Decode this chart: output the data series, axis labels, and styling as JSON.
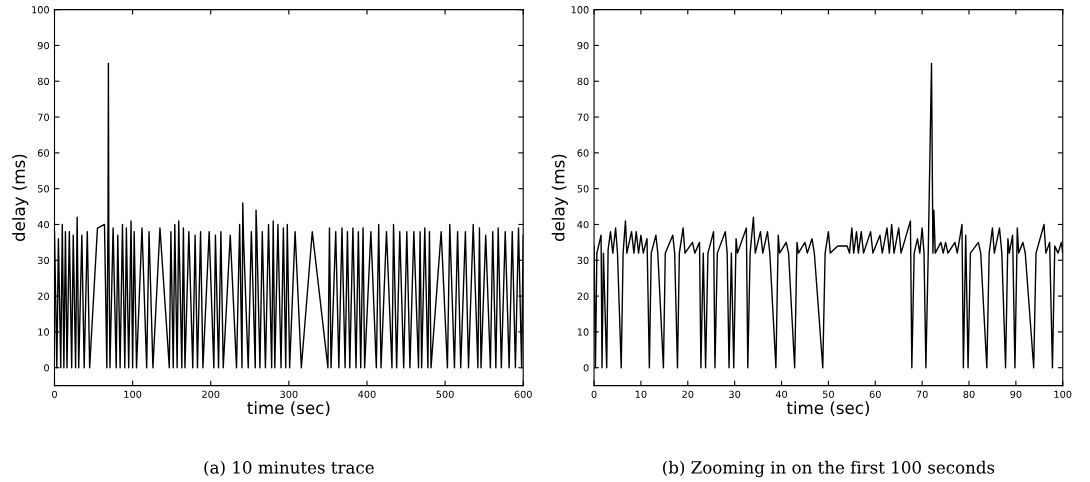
{
  "chart_data": [
    {
      "type": "line",
      "xlabel": "time (sec)",
      "ylabel": "delay (ms)",
      "xlim": [
        0,
        600
      ],
      "ylim": [
        -5,
        100
      ],
      "xticks": [
        0,
        100,
        200,
        300,
        400,
        500,
        600
      ],
      "yticks": [
        0,
        10,
        20,
        30,
        40,
        50,
        60,
        70,
        80,
        90,
        100
      ],
      "grid": false,
      "legend": false,
      "annotations": [
        "(a) 10 minutes trace"
      ],
      "series": [
        {
          "color": "#000000",
          "x": [
            0,
            3,
            5,
            8,
            10,
            12,
            14,
            16,
            19,
            22,
            24,
            27,
            29,
            31,
            35,
            38,
            42,
            45,
            55,
            64,
            67,
            68.5,
            69,
            69.5,
            71,
            75,
            79,
            81,
            84,
            87,
            90,
            92,
            95,
            98,
            100,
            102,
            105,
            112,
            118,
            121,
            126,
            135,
            147,
            149,
            152,
            154,
            157,
            159,
            163,
            165,
            167,
            172,
            177,
            180,
            183,
            187,
            190,
            198,
            204,
            206,
            210,
            213,
            216,
            225,
            233,
            237,
            240,
            241,
            242,
            248,
            252,
            257,
            258,
            259,
            263,
            266,
            270,
            274,
            278,
            280,
            282,
            286,
            290,
            293,
            296,
            298,
            301,
            308,
            316,
            330,
            350,
            352,
            354,
            360,
            364,
            368,
            372,
            375,
            378,
            382,
            386,
            389,
            392,
            395,
            397,
            405,
            412,
            415,
            418,
            425,
            432,
            434,
            438,
            442,
            447,
            451,
            455,
            460,
            466,
            468,
            470,
            474,
            478,
            480,
            482,
            495,
            503,
            506,
            512,
            516,
            520,
            526,
            530,
            536,
            542,
            544,
            546,
            552,
            558,
            561,
            565,
            568,
            572,
            577,
            582,
            586,
            590,
            594,
            598,
            600
          ],
          "values": [
            38,
            0,
            36,
            0,
            40,
            0,
            38,
            0,
            38,
            0,
            37,
            0,
            42,
            0,
            37,
            0,
            38,
            0,
            39,
            40,
            0,
            42,
            85,
            38,
            0,
            39,
            0,
            37,
            0,
            40,
            0,
            39,
            0,
            41,
            0,
            38,
            0,
            39,
            0,
            38,
            0,
            39,
            0,
            38,
            0,
            40,
            0,
            41,
            0,
            39,
            0,
            38,
            0,
            37,
            0,
            38,
            0,
            38,
            0,
            37,
            0,
            38,
            0,
            37,
            0,
            40,
            0,
            46,
            36,
            0,
            38,
            0,
            44,
            37,
            0,
            38,
            0,
            40,
            0,
            41,
            0,
            40,
            0,
            39,
            0,
            40,
            0,
            38,
            0,
            38,
            0,
            39,
            0,
            38,
            0,
            39,
            0,
            38,
            0,
            39,
            0,
            38,
            0,
            39,
            0,
            38,
            0,
            40,
            0,
            38,
            0,
            40,
            0,
            38,
            0,
            38,
            0,
            38,
            0,
            38,
            0,
            39,
            0,
            38,
            0,
            38,
            0,
            40,
            0,
            38,
            0,
            38,
            0,
            40,
            0,
            39,
            0,
            37,
            0,
            38,
            0,
            39,
            0,
            38,
            0,
            38,
            0,
            39,
            0,
            37
          ]
        }
      ]
    },
    {
      "type": "line",
      "xlabel": "time (sec)",
      "ylabel": "delay (ms)",
      "xlim": [
        0,
        100
      ],
      "ylim": [
        -5,
        100
      ],
      "xticks": [
        0,
        10,
        20,
        30,
        40,
        50,
        60,
        70,
        80,
        90,
        100
      ],
      "yticks": [
        0,
        10,
        20,
        30,
        40,
        50,
        60,
        70,
        80,
        90,
        100
      ],
      "grid": false,
      "legend": false,
      "annotations": [
        "(b) Zooming in on the first 100 seconds"
      ],
      "series": [
        {
          "color": "#000000",
          "x": [
            0,
            0.3,
            0.6,
            1.5,
            1.7,
            2.0,
            2.7,
            3.0,
            3.5,
            4,
            4.6,
            5,
            5.8,
            6.2,
            6.7,
            7,
            8,
            8.5,
            9,
            9.5,
            10,
            10.5,
            11.3,
            11.8,
            12.2,
            13.2,
            13.6,
            14.8,
            15.2,
            16.8,
            17.2,
            17.8,
            18.2,
            19,
            19.4,
            21,
            21.5,
            22.5,
            22.8,
            23.3,
            23.8,
            24.3,
            25.5,
            25.8,
            26.3,
            28,
            28.4,
            28.8,
            29.3,
            29.8,
            30.3,
            30.6,
            32.5,
            32.8,
            33.3,
            34,
            34.4,
            35.5,
            36,
            37,
            37.5,
            38.8,
            39.3,
            39.6,
            41,
            41.5,
            42.8,
            43.3,
            43.6,
            45,
            45.5,
            46.5,
            47,
            48.8,
            49.3,
            50,
            50.4,
            52,
            54,
            54.5,
            55,
            55.4,
            56,
            56.4,
            57,
            57.5,
            59,
            59.5,
            61,
            61.5,
            62.5,
            63,
            63.5,
            64,
            65,
            65.5,
            67.5,
            67.8,
            68.3,
            69,
            69.5,
            70,
            70.4,
            70.8,
            71.3,
            72,
            72.3,
            72.5,
            72.8,
            74,
            74.5,
            75,
            75.5,
            77,
            77.5,
            78.5,
            78.8,
            79.3,
            79.8,
            80.3,
            82,
            82.5,
            83.8,
            84.3,
            85,
            85.4,
            86.5,
            87,
            87.8,
            88.3,
            88.6,
            89.3,
            89.8,
            90.3,
            90.6,
            91.5,
            92,
            93.8,
            94.3,
            96,
            96.4,
            97.2,
            97.8,
            98.3,
            99,
            99.7,
            100
          ],
          "values": [
            34,
            0,
            32,
            37,
            0,
            32,
            0,
            33,
            38,
            32,
            39,
            32,
            0,
            32,
            41,
            32,
            38,
            32,
            38,
            32,
            37,
            32,
            36,
            0,
            32,
            37,
            32,
            0,
            32,
            37,
            32,
            0,
            32,
            39,
            32,
            35,
            32,
            35,
            0,
            32,
            0,
            32,
            38,
            0,
            32,
            38,
            32,
            0,
            32,
            0,
            36,
            32,
            39,
            0,
            32,
            42,
            32,
            38,
            32,
            38,
            32,
            0,
            37,
            32,
            35,
            32,
            0,
            35,
            32,
            35,
            32,
            36,
            32,
            0,
            32,
            38,
            32,
            34,
            34,
            32,
            39,
            32,
            38,
            32,
            38,
            32,
            38,
            32,
            37,
            32,
            39,
            32,
            40,
            32,
            39,
            32,
            41,
            0,
            32,
            36,
            32,
            39,
            32,
            0,
            32,
            85,
            32,
            44,
            32,
            35,
            32,
            35,
            32,
            35,
            32,
            40,
            0,
            37,
            0,
            32,
            35,
            32,
            0,
            32,
            39,
            32,
            39,
            32,
            0,
            36,
            32,
            37,
            0,
            39,
            32,
            35,
            32,
            0,
            32,
            40,
            32,
            35,
            0,
            34,
            32,
            35,
            32
          ]
        }
      ]
    }
  ]
}
